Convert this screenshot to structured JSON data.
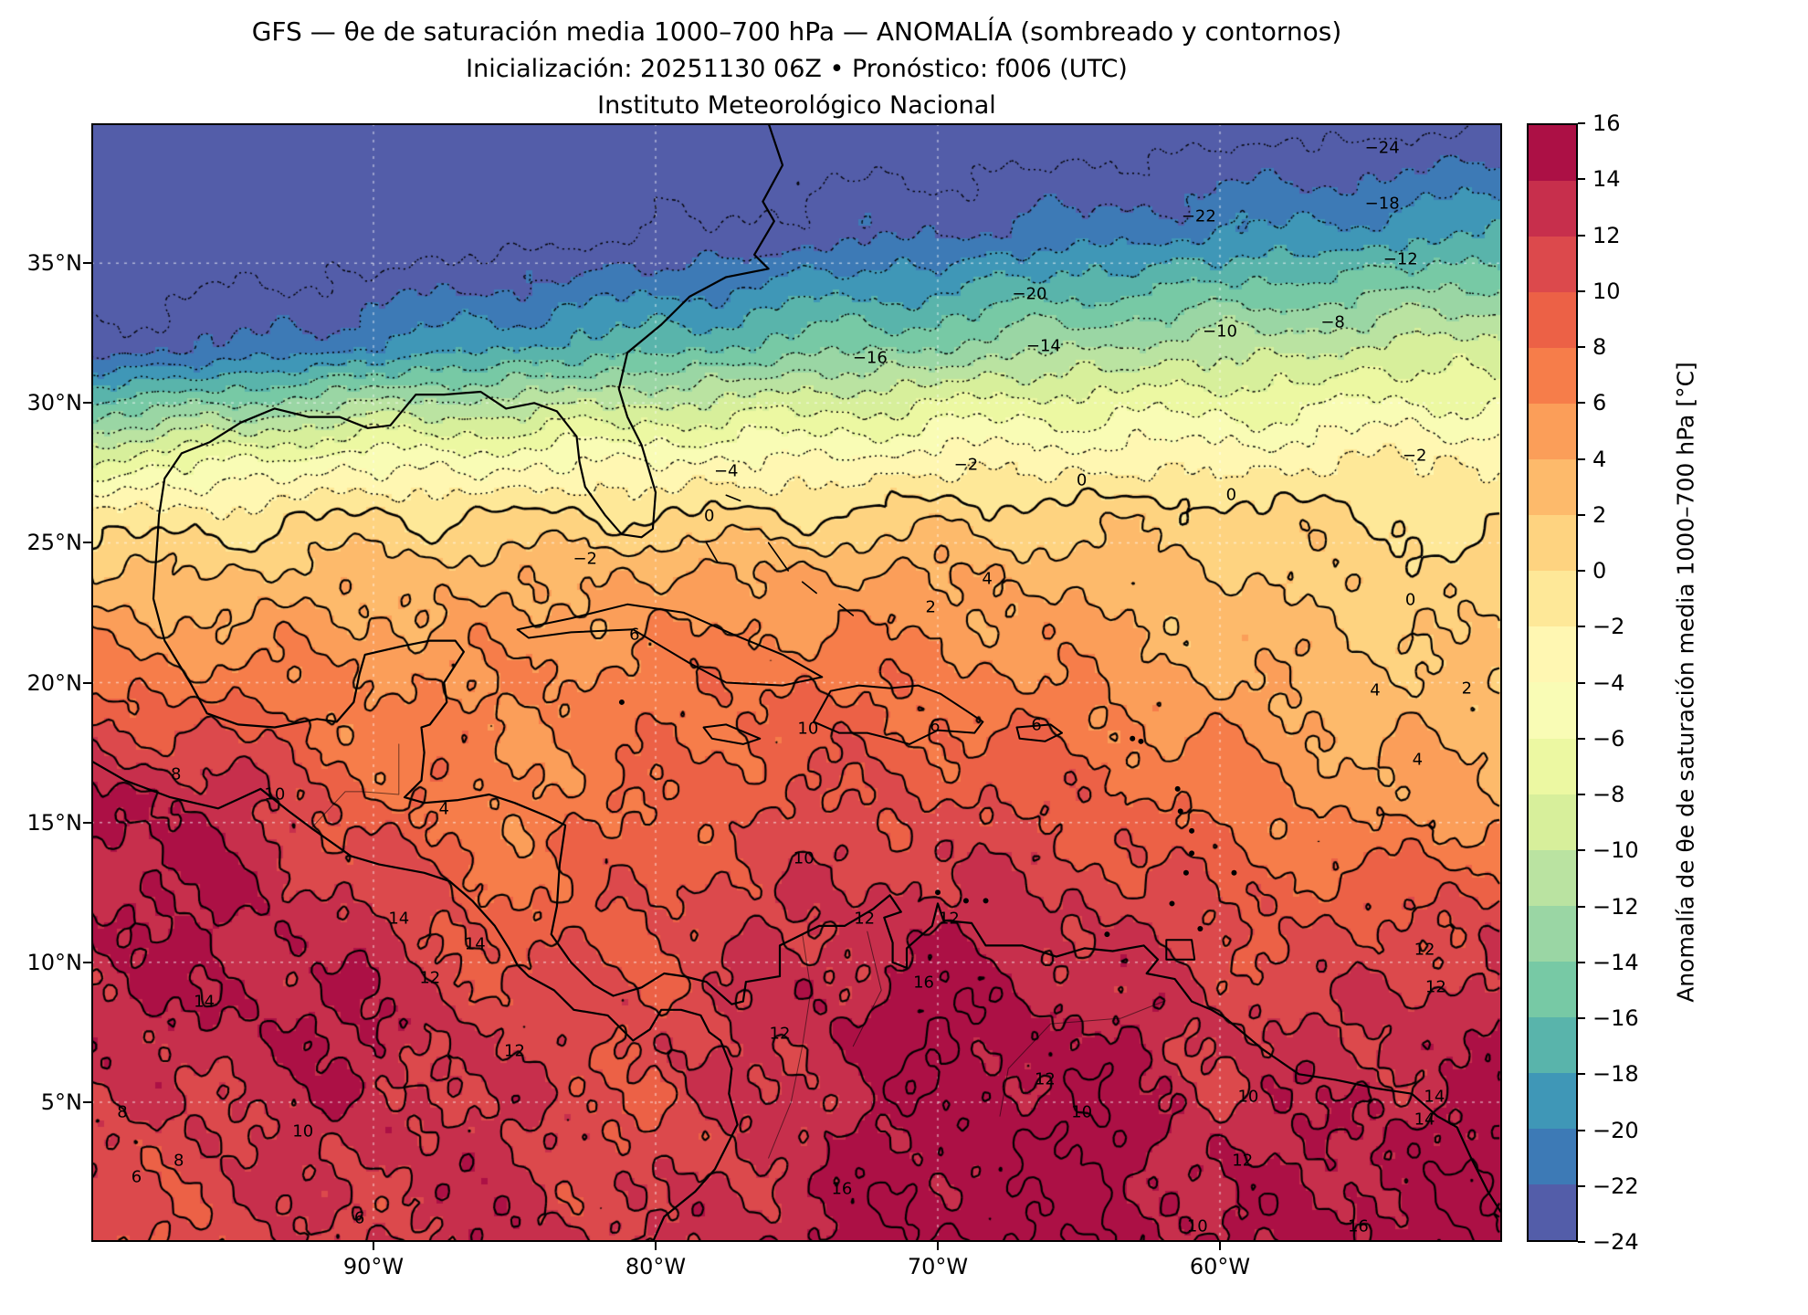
{
  "header": {
    "line1": "GFS — θe de saturación media 1000–700 hPa — ANOMALÍA (sombreado y contornos)",
    "line2": "Inicialización: 20251130 06Z   •   Pronóstico: f006 (UTC)",
    "line3": "Instituto Meteorológico Nacional"
  },
  "axes": {
    "lat_ticks": [
      {
        "label": "35°N",
        "value": 35
      },
      {
        "label": "30°N",
        "value": 30
      },
      {
        "label": "25°N",
        "value": 25
      },
      {
        "label": "20°N",
        "value": 20
      },
      {
        "label": "15°N",
        "value": 15
      },
      {
        "label": "10°N",
        "value": 10
      },
      {
        "label": "5°N",
        "value": 5
      }
    ],
    "lon_ticks": [
      {
        "label": "90°W",
        "value": -90
      },
      {
        "label": "80°W",
        "value": -80
      },
      {
        "label": "70°W",
        "value": -70
      },
      {
        "label": "60°W",
        "value": -60
      }
    ]
  },
  "colorbar": {
    "label": "Anomalía de θe de saturación media 1000–700 hPa [°C]",
    "vmin": -24,
    "vmax": 16,
    "ticks": [
      {
        "label": "16",
        "value": 16
      },
      {
        "label": "14",
        "value": 14
      },
      {
        "label": "12",
        "value": 12
      },
      {
        "label": "10",
        "value": 10
      },
      {
        "label": "8",
        "value": 8
      },
      {
        "label": "6",
        "value": 6
      },
      {
        "label": "4",
        "value": 4
      },
      {
        "label": "2",
        "value": 2
      },
      {
        "label": "0",
        "value": 0
      },
      {
        "label": "−2",
        "value": -2
      },
      {
        "label": "−4",
        "value": -4
      },
      {
        "label": "−6",
        "value": -6
      },
      {
        "label": "−8",
        "value": -8
      },
      {
        "label": "−10",
        "value": -10
      },
      {
        "label": "−12",
        "value": -12
      },
      {
        "label": "−14",
        "value": -14
      },
      {
        "label": "−16",
        "value": -16
      },
      {
        "label": "−18",
        "value": -18
      },
      {
        "label": "−20",
        "value": -20
      },
      {
        "label": "−22",
        "value": -22
      },
      {
        "label": "−24",
        "value": -24
      }
    ],
    "band_colors": [
      "#535da9",
      "#3d7ab6",
      "#3f97b7",
      "#59b4ab",
      "#77c9a5",
      "#9ad6a4",
      "#bae3a1",
      "#d7ef9b",
      "#ecf8a2",
      "#f9fcb5",
      "#fff7b2",
      "#fee898",
      "#fed380",
      "#fdba6b",
      "#fb9e59",
      "#f67d4a",
      "#ec6146",
      "#dc494c",
      "#c72f4c",
      "#ac1045"
    ]
  },
  "chart_data": {
    "type": "heatmap",
    "title": "GFS — θe de saturación media 1000–700 hPa — ANOMALÍA (sombreado y contornos)",
    "subtitle": "Inicialización: 20251130 06Z • Pronóstico: f006 (UTC)",
    "source": "Instituto Meteorológico Nacional",
    "variable": "Anomalía de θe de saturación media 1000–700 hPa",
    "units": "°C",
    "colormap": "Spectral_r, 20 discrete 2°C bands (see colorbar.band_colors)",
    "shading_range": [
      -24,
      16
    ],
    "contour_interval": 2,
    "contour_levels": [
      -24,
      -22,
      -20,
      -18,
      -16,
      -14,
      -12,
      -10,
      -8,
      -6,
      -4,
      -2,
      0,
      2,
      4,
      6,
      8,
      10,
      12,
      14,
      16
    ],
    "negative_contour_style": "dotted",
    "nonnegative_contour_style": "solid",
    "lon_range": [
      -100,
      -50
    ],
    "lat_range": [
      0,
      40
    ],
    "grid": {
      "lons": [
        -100,
        -95,
        -90,
        -85,
        -80,
        -75,
        -70,
        -65,
        -60,
        -55,
        -50
      ],
      "lats": [
        40,
        36,
        32,
        30,
        28,
        26,
        24,
        20,
        16,
        12,
        8,
        4,
        0
      ],
      "values": [
        [
          -27,
          -27,
          -27,
          -27,
          -27,
          -26,
          -26,
          -26,
          -25,
          -25,
          -24
        ],
        [
          -27,
          -26,
          -26,
          -25,
          -24,
          -23,
          -22,
          -21,
          -20,
          -19,
          -18
        ],
        [
          -23,
          -22,
          -20,
          -18,
          -17,
          -15,
          -14,
          -12,
          -11,
          -10,
          -9
        ],
        [
          -16,
          -14,
          -12,
          -11,
          -10,
          -9,
          -8,
          -7,
          -7,
          -6,
          -6
        ],
        [
          -8,
          -6,
          -5,
          -5,
          -4,
          -4,
          -3,
          -3,
          -3,
          -2,
          -2
        ],
        [
          -2,
          -1,
          0,
          0,
          0,
          0,
          1,
          1,
          1,
          0,
          -1
        ],
        [
          2,
          2,
          3,
          3,
          4,
          4,
          4,
          3,
          2,
          1,
          1
        ],
        [
          7,
          7,
          6,
          6,
          7,
          8,
          7,
          6,
          4,
          3,
          2
        ],
        [
          15,
          13,
          8,
          6,
          8,
          10,
          10,
          9,
          7,
          5,
          4
        ],
        [
          14,
          14,
          12,
          8,
          10,
          12,
          13,
          12,
          10,
          9,
          11
        ],
        [
          13,
          14,
          14,
          11,
          11,
          13,
          16,
          14,
          12,
          12,
          14
        ],
        [
          11,
          12,
          13,
          12,
          10,
          13,
          15,
          16,
          13,
          14,
          15
        ],
        [
          10,
          11,
          12,
          13,
          12,
          14,
          16,
          16,
          14,
          15,
          16
        ]
      ]
    },
    "contour_labels": [
      {
        "t": "−24",
        "x": 91.5,
        "y": 2.2
      },
      {
        "t": "−22",
        "x": 78.5,
        "y": 8.3
      },
      {
        "t": "−18",
        "x": 91.5,
        "y": 7.2
      },
      {
        "t": "−20",
        "x": 66.5,
        "y": 15.3
      },
      {
        "t": "−12",
        "x": 92.8,
        "y": 12.2
      },
      {
        "t": "−16",
        "x": 55.2,
        "y": 21.0
      },
      {
        "t": "−14",
        "x": 67.5,
        "y": 19.9
      },
      {
        "t": "−10",
        "x": 80.0,
        "y": 18.6
      },
      {
        "t": "−8",
        "x": 88.0,
        "y": 17.8
      },
      {
        "t": "−4",
        "x": 45.0,
        "y": 31.1
      },
      {
        "t": "−2",
        "x": 62.0,
        "y": 30.5
      },
      {
        "t": "−2",
        "x": 93.8,
        "y": 29.7
      },
      {
        "t": "0",
        "x": 70.2,
        "y": 31.9
      },
      {
        "t": "0",
        "x": 80.8,
        "y": 33.2
      },
      {
        "t": "−2",
        "x": 35.0,
        "y": 38.9
      },
      {
        "t": "0",
        "x": 43.8,
        "y": 35.1
      },
      {
        "t": "2",
        "x": 59.5,
        "y": 43.3
      },
      {
        "t": "4",
        "x": 63.5,
        "y": 40.7
      },
      {
        "t": "0",
        "x": 93.5,
        "y": 42.6
      },
      {
        "t": "2",
        "x": 97.5,
        "y": 50.5
      },
      {
        "t": "6",
        "x": 38.5,
        "y": 45.7
      },
      {
        "t": "4",
        "x": 91.0,
        "y": 50.7
      },
      {
        "t": "6",
        "x": 59.8,
        "y": 53.9
      },
      {
        "t": "6",
        "x": 67.0,
        "y": 53.8
      },
      {
        "t": "10",
        "x": 50.8,
        "y": 54.1
      },
      {
        "t": "4",
        "x": 94.0,
        "y": 56.9
      },
      {
        "t": "8",
        "x": 6.0,
        "y": 58.2
      },
      {
        "t": "10",
        "x": 13.0,
        "y": 60.0
      },
      {
        "t": "4",
        "x": 25.0,
        "y": 61.3
      },
      {
        "t": "10",
        "x": 50.5,
        "y": 65.7
      },
      {
        "t": "14",
        "x": 21.8,
        "y": 71.1
      },
      {
        "t": "12",
        "x": 54.8,
        "y": 71.1
      },
      {
        "t": "12",
        "x": 60.8,
        "y": 71.1
      },
      {
        "t": "16",
        "x": 59.0,
        "y": 76.8
      },
      {
        "t": "12",
        "x": 94.5,
        "y": 73.9
      },
      {
        "t": "12",
        "x": 95.3,
        "y": 77.2
      },
      {
        "t": "14",
        "x": 27.2,
        "y": 73.4
      },
      {
        "t": "12",
        "x": 24.0,
        "y": 76.4
      },
      {
        "t": "14",
        "x": 8.0,
        "y": 78.5
      },
      {
        "t": "12",
        "x": 30.0,
        "y": 82.9
      },
      {
        "t": "12",
        "x": 48.8,
        "y": 81.4
      },
      {
        "t": "12",
        "x": 67.6,
        "y": 85.5
      },
      {
        "t": "10",
        "x": 70.2,
        "y": 88.4
      },
      {
        "t": "8",
        "x": 2.2,
        "y": 88.4
      },
      {
        "t": "10",
        "x": 15.0,
        "y": 90.1
      },
      {
        "t": "14",
        "x": 94.5,
        "y": 89.1
      },
      {
        "t": "10",
        "x": 82.0,
        "y": 87.0
      },
      {
        "t": "14",
        "x": 95.2,
        "y": 87.0
      },
      {
        "t": "8",
        "x": 6.2,
        "y": 92.7
      },
      {
        "t": "6",
        "x": 3.2,
        "y": 94.2
      },
      {
        "t": "12",
        "x": 81.6,
        "y": 92.7
      },
      {
        "t": "16",
        "x": 53.2,
        "y": 95.3
      },
      {
        "t": "10",
        "x": 78.4,
        "y": 98.6
      },
      {
        "t": "16",
        "x": 89.8,
        "y": 98.6
      },
      {
        "t": "6",
        "x": 19.0,
        "y": 97.9
      }
    ]
  }
}
